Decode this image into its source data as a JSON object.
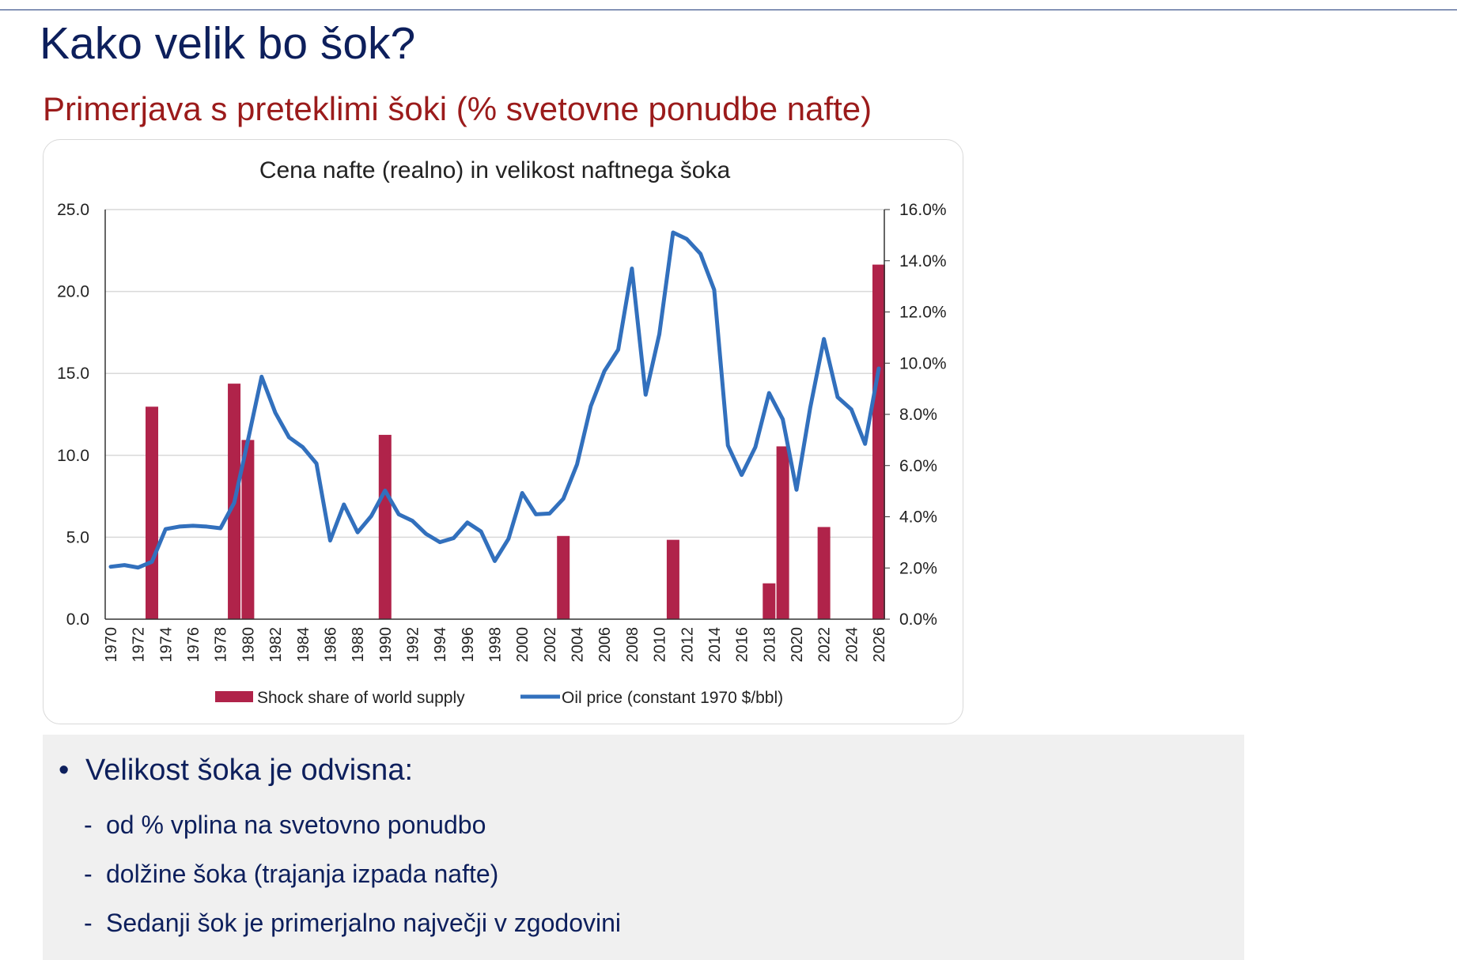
{
  "slide": {
    "title": "Kako velik bo šok?",
    "subtitle": "Primerjava s preteklimi šoki (% svetovne ponudbe nafte)"
  },
  "bullets": {
    "main": "Velikost šoka je odvisna:",
    "items": [
      "od % vplina na svetovno ponudbo",
      "dolžine šoka (trajanja izpada nafte)",
      "Sedanji šok je primerjalno največji v zgodovini"
    ]
  },
  "colors": {
    "title": "#0d1f5c",
    "subtitle": "#9b1b1b",
    "bar": "#b0234a",
    "line": "#3270bd"
  },
  "chart_data": {
    "type": "bar+line",
    "title": "Cena nafte (realno) in velikost naftnega šoka",
    "x": [
      1970,
      1971,
      1972,
      1973,
      1974,
      1975,
      1976,
      1977,
      1978,
      1979,
      1980,
      1981,
      1982,
      1983,
      1984,
      1985,
      1986,
      1987,
      1988,
      1989,
      1990,
      1991,
      1992,
      1993,
      1994,
      1995,
      1996,
      1997,
      1998,
      1999,
      2000,
      2001,
      2002,
      2003,
      2004,
      2005,
      2006,
      2007,
      2008,
      2009,
      2010,
      2011,
      2012,
      2013,
      2014,
      2015,
      2016,
      2017,
      2018,
      2019,
      2020,
      2021,
      2022,
      2023,
      2024,
      2025,
      2026
    ],
    "x_tick_labels": [
      "1970",
      "1972",
      "1974",
      "1976",
      "1978",
      "1980",
      "1982",
      "1984",
      "1986",
      "1988",
      "1990",
      "1992",
      "1994",
      "1996",
      "1998",
      "2000",
      "2002",
      "2004",
      "2006",
      "2008",
      "2010",
      "2012",
      "2014",
      "2016",
      "2018",
      "2020",
      "2022",
      "2024",
      "2026"
    ],
    "left_axis": {
      "ylim": [
        0,
        25
      ],
      "ticks": [
        "0.0",
        "5.0",
        "10.0",
        "15.0",
        "20.0",
        "25.0"
      ]
    },
    "right_axis": {
      "ylim": [
        0,
        16
      ],
      "ticks": [
        "0.0%",
        "2.0%",
        "4.0%",
        "6.0%",
        "8.0%",
        "10.0%",
        "12.0%",
        "14.0%",
        "16.0%"
      ]
    },
    "grid": true,
    "legend_position": "bottom",
    "series": [
      {
        "name": "Shock share of world supply",
        "type": "bar",
        "axis": "right",
        "unit": "%",
        "points": [
          [
            1973,
            8.3
          ],
          [
            1979,
            9.2
          ],
          [
            1980,
            7.0
          ],
          [
            1990,
            7.2
          ],
          [
            2003,
            3.25
          ],
          [
            2011,
            3.1
          ],
          [
            2018,
            1.4
          ],
          [
            2019,
            6.75
          ],
          [
            2022,
            3.6
          ],
          [
            2026,
            13.85
          ]
        ]
      },
      {
        "name": "Oil price (constant 1970 $/bbl)",
        "type": "line",
        "axis": "left",
        "values": [
          3.2,
          3.3,
          3.15,
          3.5,
          5.5,
          5.65,
          5.7,
          5.65,
          5.55,
          7.1,
          10.9,
          14.8,
          12.6,
          11.1,
          10.5,
          9.5,
          4.8,
          7.0,
          5.3,
          6.3,
          7.85,
          6.4,
          6.0,
          5.2,
          4.7,
          4.95,
          5.9,
          5.35,
          3.55,
          4.9,
          7.7,
          6.4,
          6.45,
          7.35,
          9.45,
          13.0,
          15.15,
          16.45,
          21.4,
          13.7,
          17.4,
          23.6,
          23.2,
          22.3,
          20.1,
          10.6,
          8.8,
          10.5,
          13.8,
          12.2,
          7.9,
          12.9,
          17.1,
          13.55,
          12.8,
          10.7,
          15.3
        ]
      }
    ]
  }
}
